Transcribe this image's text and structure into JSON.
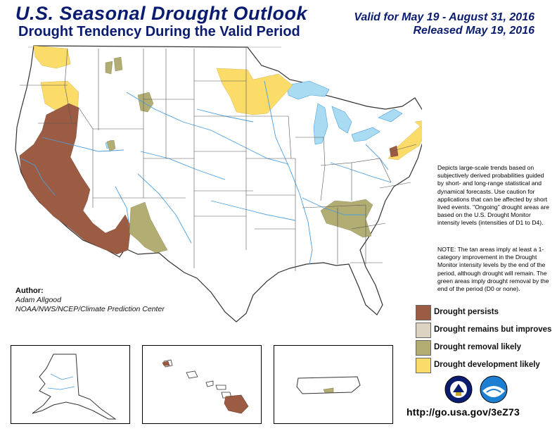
{
  "header": {
    "title": "U.S. Seasonal Drought Outlook",
    "subtitle": "Drought Tendency During the Valid Period",
    "valid": "Valid for May 19 - August 31, 2016",
    "released": "Released May 19, 2016"
  },
  "notes": {
    "paragraph1": "Depicts large-scale trends based on subjectively derived probabilities guided by short- and long-range statistical and dynamical forecasts. Use caution for applications that can be affected by short lived events. \"Ongoing\" drought areas are based on the U.S. Drought Monitor intensity levels (intensities of D1 to D4).",
    "paragraph2": "NOTE: The tan areas imply at least a 1-category improvement in the Drought Monitor intensity levels by the end of the period, although drought will remain. The green areas imply drought removal by the end of the period (D0 or none)."
  },
  "author": {
    "heading": "Author:",
    "name": "Adam Allgood",
    "org": "NOAA/NWS/NCEP/Climate Prediction Center"
  },
  "legend": [
    {
      "label": "Drought persists",
      "color": "#9c5c43"
    },
    {
      "label": "Drought remains but improves",
      "color": "#ddd3c2"
    },
    {
      "label": "Drought removal likely",
      "color": "#b2ad72"
    },
    {
      "label": "Drought development likely",
      "color": "#fbdc68"
    }
  ],
  "colors": {
    "water": "#a9dcf2",
    "river": "#4a9ee0",
    "state_border": "#555555"
  },
  "logos": [
    "noaa-logo",
    "nws-logo"
  ],
  "url": "http://go.usa.gov/3eZ73"
}
